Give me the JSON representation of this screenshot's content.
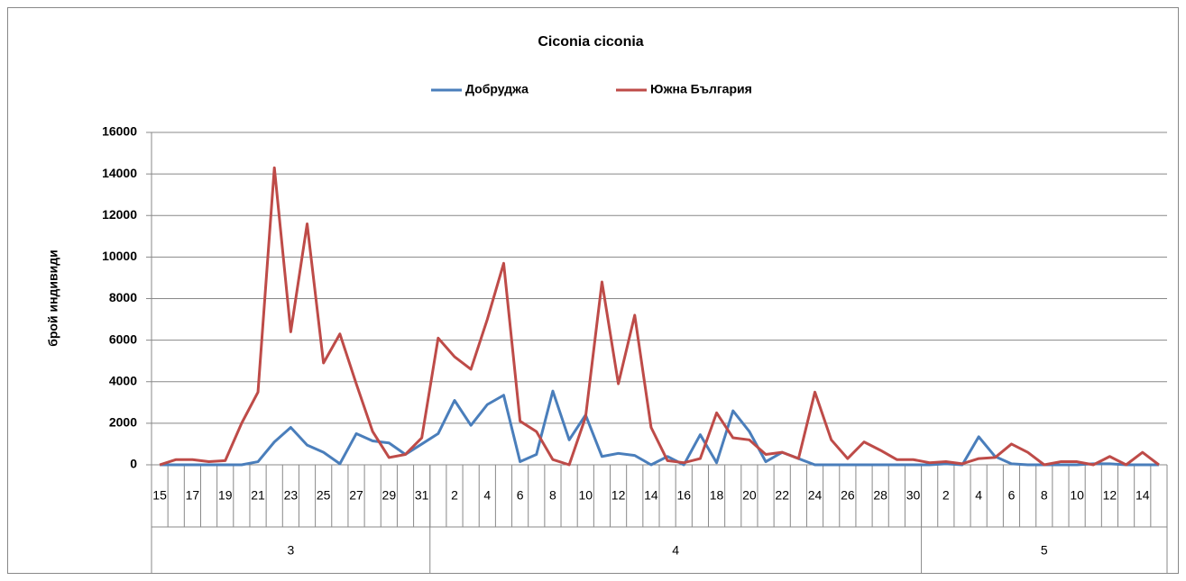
{
  "chart_data": {
    "type": "line",
    "title": "Ciconia ciconia",
    "y_label": "брой индивиди",
    "categories": [
      "15",
      null,
      "17",
      null,
      "19",
      null,
      "21",
      null,
      "23",
      null,
      "25",
      null,
      "27",
      null,
      "29",
      null,
      "31",
      null,
      "2",
      null,
      "4",
      null,
      "6",
      null,
      "8",
      null,
      "10",
      null,
      "12",
      null,
      "14",
      null,
      "16",
      null,
      "18",
      null,
      "20",
      null,
      "22",
      null,
      "24",
      null,
      "26",
      null,
      "28",
      null,
      "30",
      null,
      "2",
      null,
      "4",
      null,
      "6",
      null,
      "8",
      null,
      "10",
      null,
      "12",
      null,
      "14",
      null
    ],
    "month_groups": [
      {
        "label": "3",
        "days": 17
      },
      {
        "label": "4",
        "days": 30
      },
      {
        "label": "5",
        "days": 15
      }
    ],
    "series": [
      {
        "name": "Добруджа",
        "color": "#4a7ebb",
        "values": [
          0,
          0,
          0,
          0,
          0,
          0,
          150,
          1100,
          1800,
          950,
          600,
          50,
          1500,
          1150,
          1050,
          500,
          1000,
          1500,
          3100,
          1900,
          2900,
          3350,
          150,
          500,
          3550,
          1200,
          2400,
          400,
          550,
          450,
          0,
          400,
          0,
          1450,
          100,
          2600,
          1600,
          150,
          600,
          300,
          0,
          0,
          0,
          0,
          0,
          0,
          0,
          0,
          50,
          0,
          1350,
          400,
          50,
          0,
          0,
          0,
          0,
          50,
          50,
          0,
          0,
          0
        ]
      },
      {
        "name": "Южна България",
        "color": "#be4b48",
        "values": [
          0,
          250,
          250,
          150,
          200,
          2000,
          3500,
          14300,
          6400,
          11600,
          4900,
          6300,
          3900,
          1600,
          350,
          500,
          1300,
          6100,
          5200,
          4600,
          7000,
          9700,
          2100,
          1600,
          250,
          0,
          2300,
          8800,
          3900,
          7200,
          1800,
          200,
          100,
          300,
          2500,
          1300,
          1200,
          500,
          600,
          300,
          3500,
          1200,
          300,
          1100,
          700,
          250,
          250,
          100,
          150,
          50,
          300,
          350,
          1000,
          600,
          0,
          150,
          150,
          0,
          400,
          0,
          600,
          0
        ]
      }
    ],
    "ylim": [
      0,
      16000
    ],
    "yticks": [
      0,
      2000,
      4000,
      6000,
      8000,
      10000,
      12000,
      14000,
      16000
    ],
    "grid": true,
    "legend": "top"
  }
}
